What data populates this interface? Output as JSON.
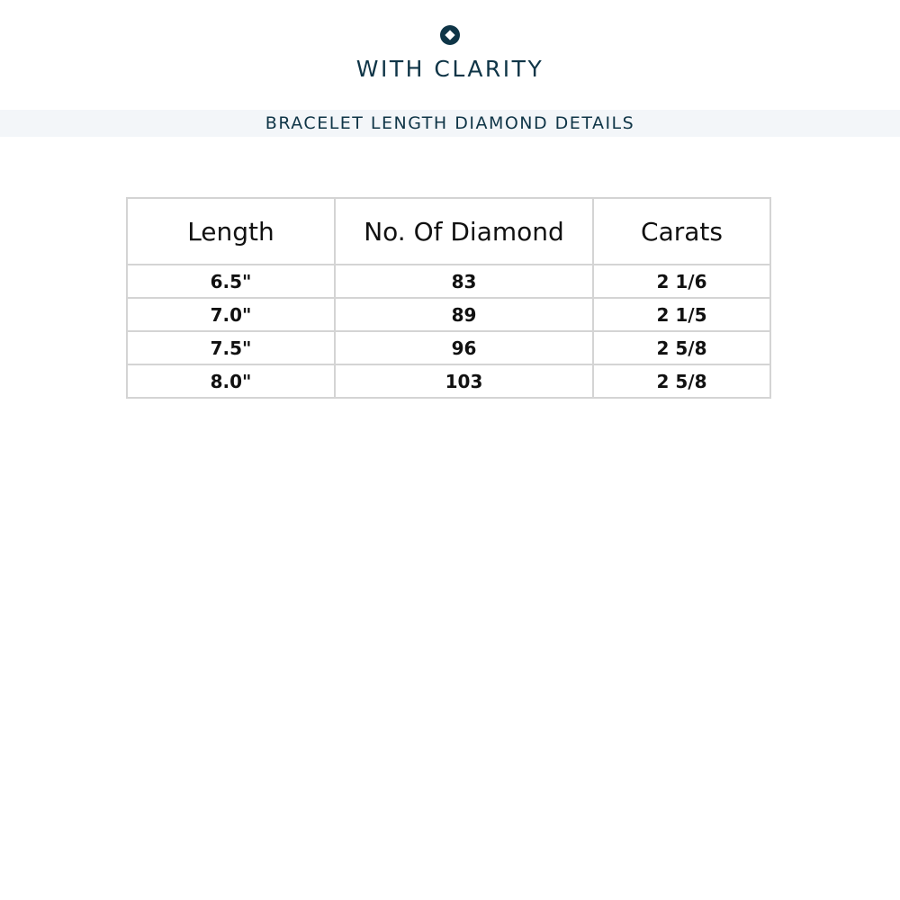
{
  "brand": {
    "name": "WITH CLARITY",
    "icon": "diamond-circle-logo",
    "color": "#0f3547"
  },
  "banner": {
    "title": "BRACELET LENGTH DIAMOND DETAILS"
  },
  "table": {
    "headers": [
      "Length",
      "No. Of Diamond",
      "Carats"
    ],
    "rows": [
      [
        "6.5\"",
        "83",
        "2 1/6"
      ],
      [
        "7.0\"",
        "89",
        "2 1/5"
      ],
      [
        "7.5\"",
        "96",
        "2 5/8"
      ],
      [
        "8.0\"",
        "103",
        "2 5/8"
      ]
    ]
  }
}
